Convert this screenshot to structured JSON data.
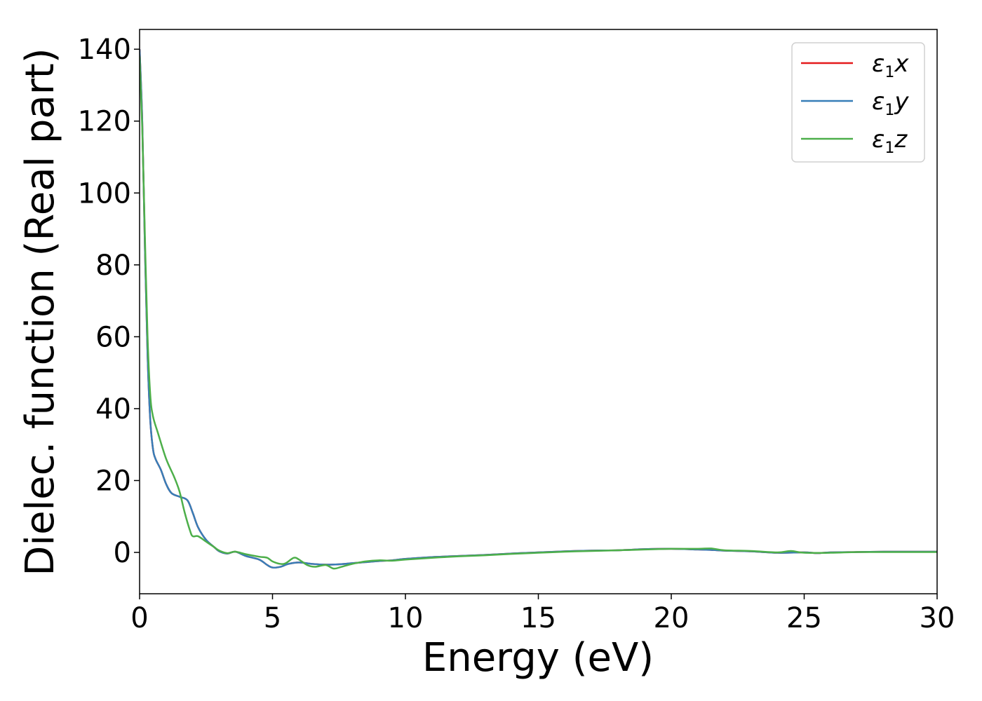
{
  "chart_data": {
    "type": "line",
    "title": "",
    "xlabel": "Energy (eV)",
    "ylabel": "Dielec. function (Real part)",
    "xlim": [
      0,
      30
    ],
    "ylim": [
      -11.5,
      145.5
    ],
    "xticks": [
      0,
      5,
      10,
      15,
      20,
      25,
      30
    ],
    "yticks": [
      0,
      20,
      40,
      60,
      80,
      100,
      120,
      140
    ],
    "grid": false,
    "legend_position": "top-right",
    "series": [
      {
        "name": "x",
        "legend_base": "ε",
        "legend_sub": "1",
        "legend_var": "x",
        "color": "#e41a1c",
        "points": [
          [
            0.0,
            140
          ],
          [
            0.1,
            120
          ],
          [
            0.2,
            85
          ],
          [
            0.3,
            55
          ],
          [
            0.4,
            37
          ],
          [
            0.5,
            29
          ],
          [
            0.6,
            26
          ],
          [
            0.8,
            23
          ],
          [
            1.0,
            19
          ],
          [
            1.2,
            16.5
          ],
          [
            1.5,
            15.5
          ],
          [
            1.8,
            14.5
          ],
          [
            2.0,
            11
          ],
          [
            2.2,
            7
          ],
          [
            2.5,
            3.5
          ],
          [
            2.8,
            1.5
          ],
          [
            3.0,
            0.3
          ],
          [
            3.3,
            -0.3
          ],
          [
            3.6,
            0.2
          ],
          [
            4.0,
            -1
          ],
          [
            4.5,
            -2
          ],
          [
            4.8,
            -3.5
          ],
          [
            5.0,
            -4.2
          ],
          [
            5.3,
            -4
          ],
          [
            5.6,
            -3.2
          ],
          [
            6.0,
            -2.8
          ],
          [
            6.5,
            -3.2
          ],
          [
            7.0,
            -3.4
          ],
          [
            7.5,
            -3.3
          ],
          [
            8.0,
            -3
          ],
          [
            8.5,
            -2.7
          ],
          [
            9.0,
            -2.4
          ],
          [
            9.5,
            -2.2
          ],
          [
            10.0,
            -1.8
          ],
          [
            11.0,
            -1.3
          ],
          [
            12.0,
            -1
          ],
          [
            13.0,
            -0.7
          ],
          [
            14.0,
            -0.3
          ],
          [
            15.0,
            0
          ],
          [
            16.0,
            0.3
          ],
          [
            17.0,
            0.5
          ],
          [
            18.0,
            0.6
          ],
          [
            19.0,
            0.9
          ],
          [
            20.0,
            1
          ],
          [
            21.0,
            0.8
          ],
          [
            21.5,
            0.7
          ],
          [
            22.0,
            0.5
          ],
          [
            23.0,
            0.3
          ],
          [
            24.0,
            -0.1
          ],
          [
            25.0,
            0
          ],
          [
            25.5,
            -0.2
          ],
          [
            26.0,
            0
          ],
          [
            27.0,
            0.1
          ],
          [
            28.0,
            0.2
          ],
          [
            29.0,
            0.2
          ],
          [
            30.0,
            0.2
          ]
        ]
      },
      {
        "name": "y",
        "legend_base": "ε",
        "legend_sub": "1",
        "legend_var": "y",
        "color": "#377eb8",
        "points": [
          [
            0.0,
            140
          ],
          [
            0.1,
            120
          ],
          [
            0.2,
            85
          ],
          [
            0.3,
            55
          ],
          [
            0.4,
            37
          ],
          [
            0.5,
            29
          ],
          [
            0.6,
            26
          ],
          [
            0.8,
            23
          ],
          [
            1.0,
            19
          ],
          [
            1.2,
            16.5
          ],
          [
            1.5,
            15.5
          ],
          [
            1.8,
            14.5
          ],
          [
            2.0,
            11
          ],
          [
            2.2,
            7
          ],
          [
            2.5,
            3.5
          ],
          [
            2.8,
            1.5
          ],
          [
            3.0,
            0.3
          ],
          [
            3.3,
            -0.3
          ],
          [
            3.6,
            0.2
          ],
          [
            4.0,
            -1
          ],
          [
            4.5,
            -2
          ],
          [
            4.8,
            -3.5
          ],
          [
            5.0,
            -4.2
          ],
          [
            5.3,
            -4
          ],
          [
            5.6,
            -3.2
          ],
          [
            6.0,
            -2.8
          ],
          [
            6.5,
            -3.2
          ],
          [
            7.0,
            -3.4
          ],
          [
            7.5,
            -3.3
          ],
          [
            8.0,
            -3
          ],
          [
            8.5,
            -2.7
          ],
          [
            9.0,
            -2.4
          ],
          [
            9.5,
            -2.2
          ],
          [
            10.0,
            -1.8
          ],
          [
            11.0,
            -1.3
          ],
          [
            12.0,
            -1
          ],
          [
            13.0,
            -0.7
          ],
          [
            14.0,
            -0.3
          ],
          [
            15.0,
            0
          ],
          [
            16.0,
            0.3
          ],
          [
            17.0,
            0.5
          ],
          [
            18.0,
            0.6
          ],
          [
            19.0,
            0.9
          ],
          [
            20.0,
            1
          ],
          [
            21.0,
            0.8
          ],
          [
            21.5,
            0.7
          ],
          [
            22.0,
            0.5
          ],
          [
            23.0,
            0.3
          ],
          [
            24.0,
            -0.1
          ],
          [
            25.0,
            0
          ],
          [
            25.5,
            -0.2
          ],
          [
            26.0,
            0
          ],
          [
            27.0,
            0.1
          ],
          [
            28.0,
            0.2
          ],
          [
            29.0,
            0.2
          ],
          [
            30.0,
            0.2
          ]
        ]
      },
      {
        "name": "z",
        "legend_base": "ε",
        "legend_sub": "1",
        "legend_var": "z",
        "color": "#4daf4a",
        "points": [
          [
            0.0,
            138
          ],
          [
            0.1,
            118
          ],
          [
            0.2,
            88
          ],
          [
            0.3,
            60
          ],
          [
            0.4,
            44
          ],
          [
            0.5,
            38
          ],
          [
            0.7,
            33
          ],
          [
            1.0,
            26
          ],
          [
            1.3,
            21
          ],
          [
            1.5,
            17
          ],
          [
            1.7,
            11
          ],
          [
            1.9,
            6
          ],
          [
            2.0,
            4.5
          ],
          [
            2.2,
            4.5
          ],
          [
            2.5,
            3
          ],
          [
            2.8,
            1.5
          ],
          [
            3.0,
            0.5
          ],
          [
            3.3,
            -0.2
          ],
          [
            3.6,
            0.2
          ],
          [
            4.0,
            -0.5
          ],
          [
            4.5,
            -1.2
          ],
          [
            4.8,
            -1.5
          ],
          [
            5.0,
            -2.5
          ],
          [
            5.3,
            -3.2
          ],
          [
            5.5,
            -3
          ],
          [
            5.8,
            -1.5
          ],
          [
            6.0,
            -2
          ],
          [
            6.3,
            -3.5
          ],
          [
            6.6,
            -4
          ],
          [
            7.0,
            -3.5
          ],
          [
            7.3,
            -4.5
          ],
          [
            7.6,
            -4
          ],
          [
            8.0,
            -3.2
          ],
          [
            8.5,
            -2.5
          ],
          [
            9.0,
            -2.2
          ],
          [
            9.5,
            -2.3
          ],
          [
            10.0,
            -2
          ],
          [
            11.0,
            -1.5
          ],
          [
            12.0,
            -1.1
          ],
          [
            13.0,
            -0.8
          ],
          [
            14.0,
            -0.4
          ],
          [
            15.0,
            -0.1
          ],
          [
            16.0,
            0.2
          ],
          [
            17.0,
            0.4
          ],
          [
            18.0,
            0.6
          ],
          [
            19.0,
            0.8
          ],
          [
            20.0,
            1
          ],
          [
            21.0,
            1
          ],
          [
            21.5,
            1.1
          ],
          [
            22.0,
            0.6
          ],
          [
            23.0,
            0.4
          ],
          [
            24.0,
            0
          ],
          [
            24.5,
            0.4
          ],
          [
            25.0,
            -0.1
          ],
          [
            26.0,
            -0.1
          ],
          [
            27.0,
            0.1
          ],
          [
            28.0,
            0.1
          ],
          [
            29.0,
            0.1
          ],
          [
            30.0,
            0.1
          ]
        ]
      }
    ]
  }
}
